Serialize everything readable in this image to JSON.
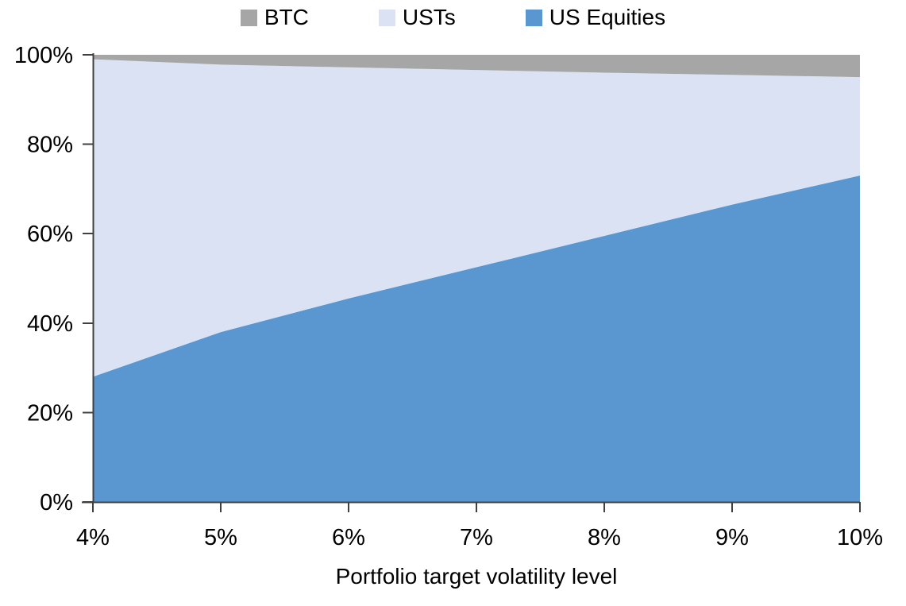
{
  "chart_data": {
    "type": "area",
    "stacked_percent": true,
    "title": "",
    "xlabel": "Portfolio target volatility level",
    "ylabel": "",
    "x": [
      4,
      5,
      6,
      7,
      8,
      9,
      10
    ],
    "x_tick_labels": [
      "4%",
      "5%",
      "6%",
      "7%",
      "8%",
      "9%",
      "10%"
    ],
    "y_ticks": [
      0,
      20,
      40,
      60,
      80,
      100
    ],
    "y_tick_labels": [
      "0%",
      "20%",
      "40%",
      "60%",
      "80%",
      "100%"
    ],
    "ylim": [
      0,
      100
    ],
    "grid": false,
    "legend_position": "top",
    "legend_order": [
      "BTC",
      "USTs",
      "US Equities"
    ],
    "series": [
      {
        "name": "US Equities",
        "color": "#5A97D0",
        "values": [
          28,
          38,
          45.5,
          52.5,
          59.5,
          66.5,
          73
        ]
      },
      {
        "name": "USTs",
        "color": "#DAE2F3",
        "values": [
          71,
          59.8,
          51.7,
          44.1,
          36.5,
          29,
          22
        ]
      },
      {
        "name": "BTC",
        "color": "#A6A6A6",
        "values": [
          1,
          2.2,
          2.8,
          3.4,
          4,
          4.5,
          5
        ]
      }
    ],
    "colors": {
      "axis": "#404040",
      "text": "#000000",
      "background": "#FFFFFF"
    }
  }
}
